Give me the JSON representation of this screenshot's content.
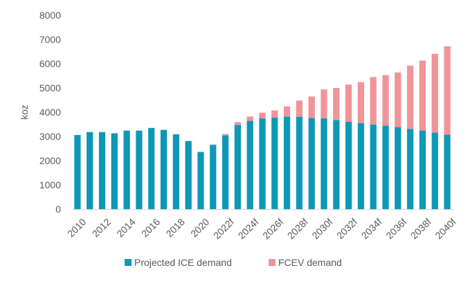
{
  "chart_data": {
    "type": "bar",
    "stacked": true,
    "title": "",
    "xlabel": "",
    "ylabel": "koz",
    "ylim": [
      0,
      8000
    ],
    "yticks": [
      0,
      1000,
      2000,
      3000,
      4000,
      5000,
      6000,
      7000,
      8000
    ],
    "grid": false,
    "legend_position": "bottom",
    "categories": [
      "2010",
      "2011",
      "2012",
      "2013",
      "2014",
      "2015",
      "2016",
      "2017",
      "2018",
      "2019",
      "2020",
      "2021",
      "2022f",
      "2023f",
      "2024f",
      "2025f",
      "2026f",
      "2027f",
      "2028f",
      "2029f",
      "2030f",
      "2031f",
      "2032f",
      "2033f",
      "2034f",
      "2035f",
      "2036f",
      "2037f",
      "2038f",
      "2039f",
      "2040f"
    ],
    "tick_labels": [
      "2010",
      "2012",
      "2014",
      "2016",
      "2018",
      "2020",
      "2022f",
      "2024f",
      "2026f",
      "2028f",
      "2030f",
      "2032f",
      "2034f",
      "2036f",
      "2038f",
      "2040f"
    ],
    "series": [
      {
        "name": "Projected ICE demand",
        "color": "#0e98b8",
        "values": [
          3060,
          3180,
          3180,
          3130,
          3240,
          3240,
          3350,
          3270,
          3090,
          2810,
          2360,
          2650,
          3040,
          3470,
          3640,
          3750,
          3780,
          3820,
          3810,
          3760,
          3750,
          3680,
          3600,
          3550,
          3490,
          3440,
          3390,
          3310,
          3240,
          3160,
          3070
        ]
      },
      {
        "name": "FCEV demand",
        "color": "#f09498",
        "values": [
          0,
          0,
          0,
          0,
          0,
          0,
          0,
          0,
          0,
          0,
          0,
          20,
          60,
          120,
          180,
          230,
          290,
          420,
          670,
          890,
          1190,
          1320,
          1540,
          1690,
          1960,
          2090,
          2250,
          2610,
          2890,
          3250,
          3650
        ]
      }
    ]
  }
}
